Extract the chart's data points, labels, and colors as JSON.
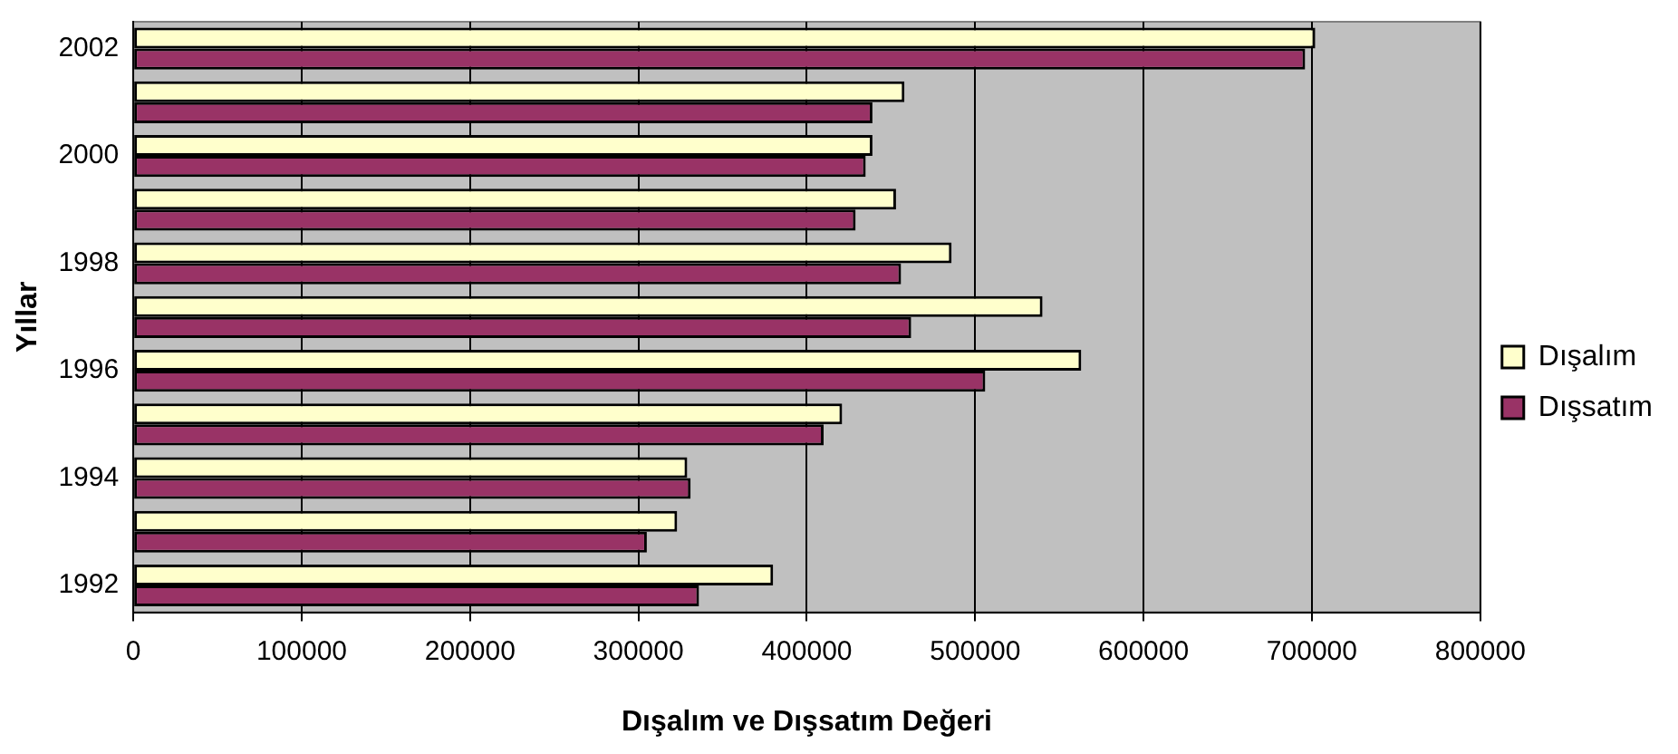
{
  "chart_data": {
    "type": "bar",
    "orientation": "horizontal",
    "xlabel": "Dışalım ve Dışsatım Değeri",
    "ylabel": "Yıllar",
    "categories": [
      "2002",
      null,
      "2000",
      null,
      "1998",
      null,
      "1996",
      null,
      "1994",
      null,
      "1992"
    ],
    "series": [
      {
        "name": "Dışalım",
        "color": "#ffffcc",
        "values": [
          702000,
          458000,
          439000,
          453000,
          486000,
          540000,
          563000,
          421000,
          329000,
          323000,
          380000
        ]
      },
      {
        "name": "Dışsatım",
        "color": "#993366",
        "values": [
          696000,
          439000,
          435000,
          429000,
          456000,
          462000,
          506000,
          410000,
          331000,
          305000,
          336000
        ]
      }
    ],
    "xlim": [
      0,
      800000
    ],
    "xticks": [
      0,
      100000,
      200000,
      300000,
      400000,
      500000,
      600000,
      700000,
      800000
    ],
    "grid": "x",
    "legend": "right"
  }
}
